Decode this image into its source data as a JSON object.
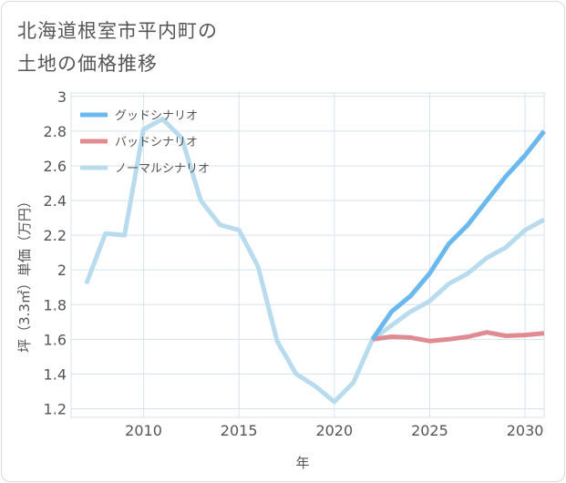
{
  "title_lines": [
    "北海道根室市平内町の",
    "土地の価格推移"
  ],
  "chart_data": {
    "type": "line",
    "xlabel": "年",
    "ylabel": "坪（3.3㎡）単価（万円）",
    "xlim": [
      2006.2,
      2031
    ],
    "ylim": [
      1.15,
      3.02
    ],
    "x_ticks": [
      2010,
      2015,
      2020,
      2025,
      2030
    ],
    "y_ticks": [
      1.2,
      1.4,
      1.6,
      1.8,
      2,
      2.2,
      2.4,
      2.6,
      2.8,
      3
    ],
    "grid": true,
    "legend_position": "top-left",
    "series": [
      {
        "name": "グッドシナリオ",
        "color": "#6bb8ef",
        "x": [
          2022,
          2023,
          2024,
          2025,
          2026,
          2027,
          2028,
          2029,
          2030,
          2031
        ],
        "y": [
          1.6,
          1.76,
          1.85,
          1.98,
          2.15,
          2.26,
          2.4,
          2.54,
          2.66,
          2.8
        ]
      },
      {
        "name": "バッドシナリオ",
        "color": "#e08b92",
        "x": [
          2022,
          2023,
          2024,
          2025,
          2026,
          2027,
          2028,
          2029,
          2030,
          2031
        ],
        "y": [
          1.6,
          1.615,
          1.61,
          1.59,
          1.6,
          1.615,
          1.64,
          1.62,
          1.625,
          1.635
        ]
      },
      {
        "name": "ノーマルシナリオ",
        "color": "#b8dcee",
        "x": [
          2007,
          2008,
          2009,
          2010,
          2011,
          2012,
          2013,
          2014,
          2015,
          2016,
          2017,
          2018,
          2019,
          2020,
          2021,
          2022,
          2023,
          2024,
          2025,
          2026,
          2027,
          2028,
          2029,
          2030,
          2031
        ],
        "y": [
          1.92,
          2.21,
          2.2,
          2.81,
          2.87,
          2.76,
          2.4,
          2.26,
          2.23,
          2.02,
          1.59,
          1.4,
          1.33,
          1.24,
          1.35,
          1.6,
          1.68,
          1.76,
          1.82,
          1.92,
          1.98,
          2.07,
          2.13,
          2.23,
          2.29
        ]
      }
    ]
  }
}
